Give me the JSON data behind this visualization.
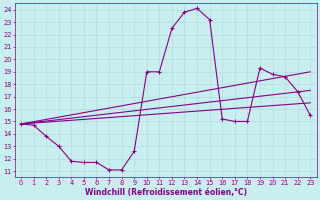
{
  "xlabel": "Windchill (Refroidissement éolien,°C)",
  "ylabel": "",
  "bg_color": "#c8eef0",
  "grid_color": "#aed8da",
  "line_color": "#880088",
  "xlim": [
    -0.5,
    23.5
  ],
  "ylim": [
    10.5,
    24.5
  ],
  "xticks": [
    0,
    1,
    2,
    3,
    4,
    5,
    6,
    7,
    8,
    9,
    10,
    11,
    12,
    13,
    14,
    15,
    16,
    17,
    18,
    19,
    20,
    21,
    22,
    23
  ],
  "yticks": [
    11,
    12,
    13,
    14,
    15,
    16,
    17,
    18,
    19,
    20,
    21,
    22,
    23,
    24
  ],
  "series": [
    {
      "x": [
        0,
        1,
        2,
        3,
        4,
        5,
        6,
        7,
        8,
        9,
        10,
        11,
        12,
        13,
        14,
        15,
        16,
        17,
        18,
        19,
        20,
        21,
        22,
        23
      ],
      "y": [
        14.8,
        14.7,
        13.8,
        13.0,
        11.8,
        11.7,
        11.7,
        11.1,
        11.1,
        12.6,
        19.0,
        19.0,
        22.5,
        23.8,
        24.1,
        23.2,
        15.2,
        15.0,
        15.0,
        19.3,
        18.8,
        18.6,
        17.4,
        15.5
      ],
      "marker": "+",
      "linestyle": "-",
      "linewidth": 0.8,
      "markersize": 3.5
    },
    {
      "x": [
        0,
        23
      ],
      "y": [
        14.8,
        19.0
      ],
      "marker": null,
      "linestyle": "-",
      "linewidth": 0.8,
      "markersize": 0
    },
    {
      "x": [
        0,
        23
      ],
      "y": [
        14.8,
        17.5
      ],
      "marker": null,
      "linestyle": "-",
      "linewidth": 0.8,
      "markersize": 0
    },
    {
      "x": [
        0,
        23
      ],
      "y": [
        14.8,
        16.5
      ],
      "marker": null,
      "linestyle": "-",
      "linewidth": 0.8,
      "markersize": 0
    }
  ],
  "title_fontsize": 6,
  "axis_fontsize": 5.5,
  "tick_fontsize": 4.8
}
